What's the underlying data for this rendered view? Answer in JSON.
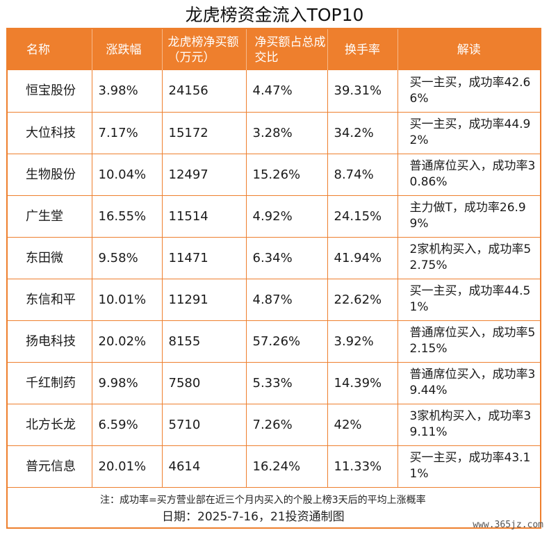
{
  "title": "龙虎榜资金流入TOP10",
  "table": {
    "headers": [
      "名称",
      "涨跌幅",
      "龙虎榜净买额（万元）",
      "净买额占总成交比",
      "换手率",
      "解读"
    ],
    "rows": [
      [
        "恒宝股份",
        "3.98%",
        "24156",
        "4.47%",
        "39.31%",
        "买一主买，成功率42.66%"
      ],
      [
        "大位科技",
        "7.17%",
        "15172",
        "3.28%",
        "34.2%",
        "买一主买，成功率44.92%"
      ],
      [
        "生物股份",
        "10.04%",
        "12497",
        "15.26%",
        "8.74%",
        "普通席位买入，成功率30.86%"
      ],
      [
        "广生堂",
        "16.55%",
        "11514",
        "4.92%",
        "24.15%",
        "主力做T，成功率26.99%"
      ],
      [
        "东田微",
        "9.58%",
        "11471",
        "6.34%",
        "41.94%",
        "2家机构买入，成功率52.75%"
      ],
      [
        "东信和平",
        "10.01%",
        "11291",
        "4.87%",
        "22.62%",
        "买一主买，成功率44.51%"
      ],
      [
        "扬电科技",
        "20.02%",
        "8155",
        "57.26%",
        "3.92%",
        "普通席位买入，成功率52.15%"
      ],
      [
        "千红制药",
        "9.98%",
        "7580",
        "5.33%",
        "14.39%",
        "普通席位买入，成功率39.44%"
      ],
      [
        "北方长龙",
        "6.59%",
        "5710",
        "7.26%",
        "42%",
        "3家机构买入，成功率39.11%"
      ],
      [
        "普元信息",
        "20.01%",
        "4614",
        "16.24%",
        "11.33%",
        "买一主买，成功率43.11%"
      ]
    ]
  },
  "footnote": "注：成功率=买方营业部在近三个月内买入的个股上榜3天后的平均上涨概率",
  "dateline": "日期：2025-7-16，21投资通制图",
  "watermark": "www.365jz.com",
  "colors": {
    "accent": "#ee7f2d",
    "header_text": "#ffffff"
  }
}
